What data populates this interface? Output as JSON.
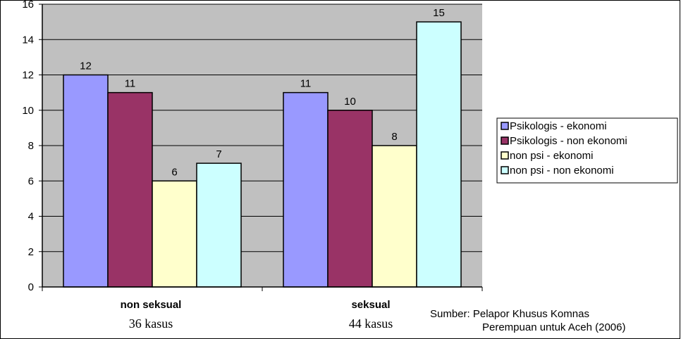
{
  "chart_data": {
    "type": "bar",
    "categories": [
      "non seksual",
      "seksual"
    ],
    "category_sublabels": [
      "36 kasus",
      "44 kasus"
    ],
    "series": [
      {
        "name": "Psikologis - ekonomi",
        "values": [
          12,
          11
        ],
        "color": "#9999ff"
      },
      {
        "name": "Psikologis - non ekonomi",
        "values": [
          11,
          10
        ],
        "color": "#993366"
      },
      {
        "name": "non psi - ekonomi",
        "values": [
          6,
          8
        ],
        "color": "#ffffcc"
      },
      {
        "name": "non psi - non ekonomi",
        "values": [
          7,
          15
        ],
        "color": "#ccffff"
      }
    ],
    "data_labels": [
      [
        "12",
        "11"
      ],
      [
        "11",
        "10"
      ],
      [
        "6",
        "8"
      ],
      [
        "7",
        "15"
      ]
    ],
    "ylim": [
      0,
      16
    ],
    "yticks": [
      "0",
      "2",
      "4",
      "6",
      "8",
      "10",
      "12",
      "14",
      "16"
    ],
    "plot_background": "#c0c0c0",
    "grid": true,
    "legend_position": "right"
  },
  "source": {
    "line1": "Sumber: Pelapor Khusus Komnas",
    "line2": "Perempuan untuk Aceh (2006)"
  }
}
